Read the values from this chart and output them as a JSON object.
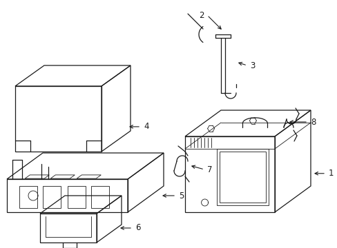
{
  "background_color": "#ffffff",
  "line_color": "#1a1a1a",
  "lw": 0.9,
  "tlw": 0.6,
  "figsize": [
    4.89,
    3.6
  ],
  "dpi": 100,
  "label_fs": 8.5
}
